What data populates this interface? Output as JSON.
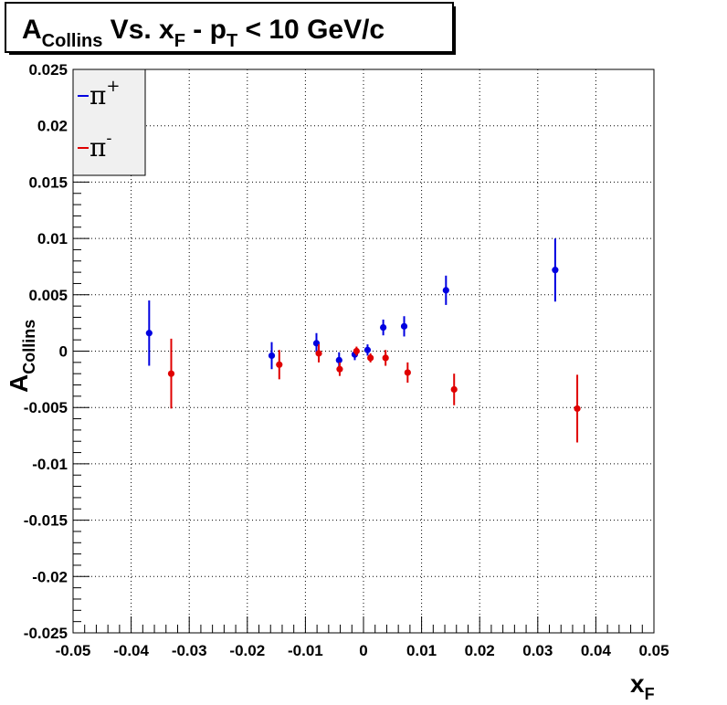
{
  "chart_data": {
    "type": "scatter",
    "title": {
      "main": "A",
      "sub1": "Collins",
      "mid": " Vs. x",
      "sub2": "F",
      "mid2": " - p",
      "sub3": "T",
      "tail": " < 10 GeV/c"
    },
    "xlabel": {
      "main": "x",
      "sub": "F"
    },
    "ylabel": {
      "main": "A",
      "sub": "Collins"
    },
    "xlim": [
      -0.05,
      0.05
    ],
    "ylim": [
      -0.025,
      0.025
    ],
    "x_ticks": [
      "-0.05",
      "-0.04",
      "-0.03",
      "-0.02",
      "-0.01",
      "0",
      "0.01",
      "0.02",
      "0.03",
      "0.04",
      "0.05"
    ],
    "y_ticks": [
      "0.025",
      "0.02",
      "0.015",
      "0.01",
      "0.005",
      "0",
      "-0.005",
      "-0.01",
      "-0.015",
      "-0.02",
      "-0.025"
    ],
    "grid": true,
    "legend_position": "top-left",
    "series": [
      {
        "name": "π+",
        "legend_main": "π",
        "legend_sup": "+",
        "color": "#0000e0",
        "points": [
          {
            "x": -0.0369,
            "y": 0.0016,
            "err": 0.0029
          },
          {
            "x": -0.0158,
            "y": -0.0004,
            "err": 0.0012
          },
          {
            "x": -0.0081,
            "y": 0.0007,
            "err": 0.0009
          },
          {
            "x": -0.0042,
            "y": -0.0008,
            "err": 0.0007
          },
          {
            "x": -0.0015,
            "y": -0.0003,
            "err": 0.0005
          },
          {
            "x": 0.0007,
            "y": 0.0001,
            "err": 0.0005
          },
          {
            "x": 0.0034,
            "y": 0.0021,
            "err": 0.0007
          },
          {
            "x": 0.007,
            "y": 0.0022,
            "err": 0.0009
          },
          {
            "x": 0.0142,
            "y": 0.0054,
            "err": 0.0013
          },
          {
            "x": 0.033,
            "y": 0.0072,
            "err": 0.0028
          }
        ]
      },
      {
        "name": "π-",
        "legend_main": "π",
        "legend_sup": "-",
        "color": "#e00000",
        "points": [
          {
            "x": -0.0331,
            "y": -0.002,
            "err": 0.0031
          },
          {
            "x": -0.0145,
            "y": -0.0012,
            "err": 0.0013
          },
          {
            "x": -0.0077,
            "y": -0.0002,
            "err": 0.0008
          },
          {
            "x": -0.0041,
            "y": -0.0016,
            "err": 0.0006
          },
          {
            "x": -0.0012,
            "y": 0.0,
            "err": 0.0004
          },
          {
            "x": 0.0012,
            "y": -0.0006,
            "err": 0.0004
          },
          {
            "x": 0.0038,
            "y": -0.0006,
            "err": 0.0007
          },
          {
            "x": 0.0076,
            "y": -0.0019,
            "err": 0.0009
          },
          {
            "x": 0.0156,
            "y": -0.0034,
            "err": 0.0014
          },
          {
            "x": 0.0368,
            "y": -0.0051,
            "err": 0.003
          }
        ]
      }
    ]
  }
}
